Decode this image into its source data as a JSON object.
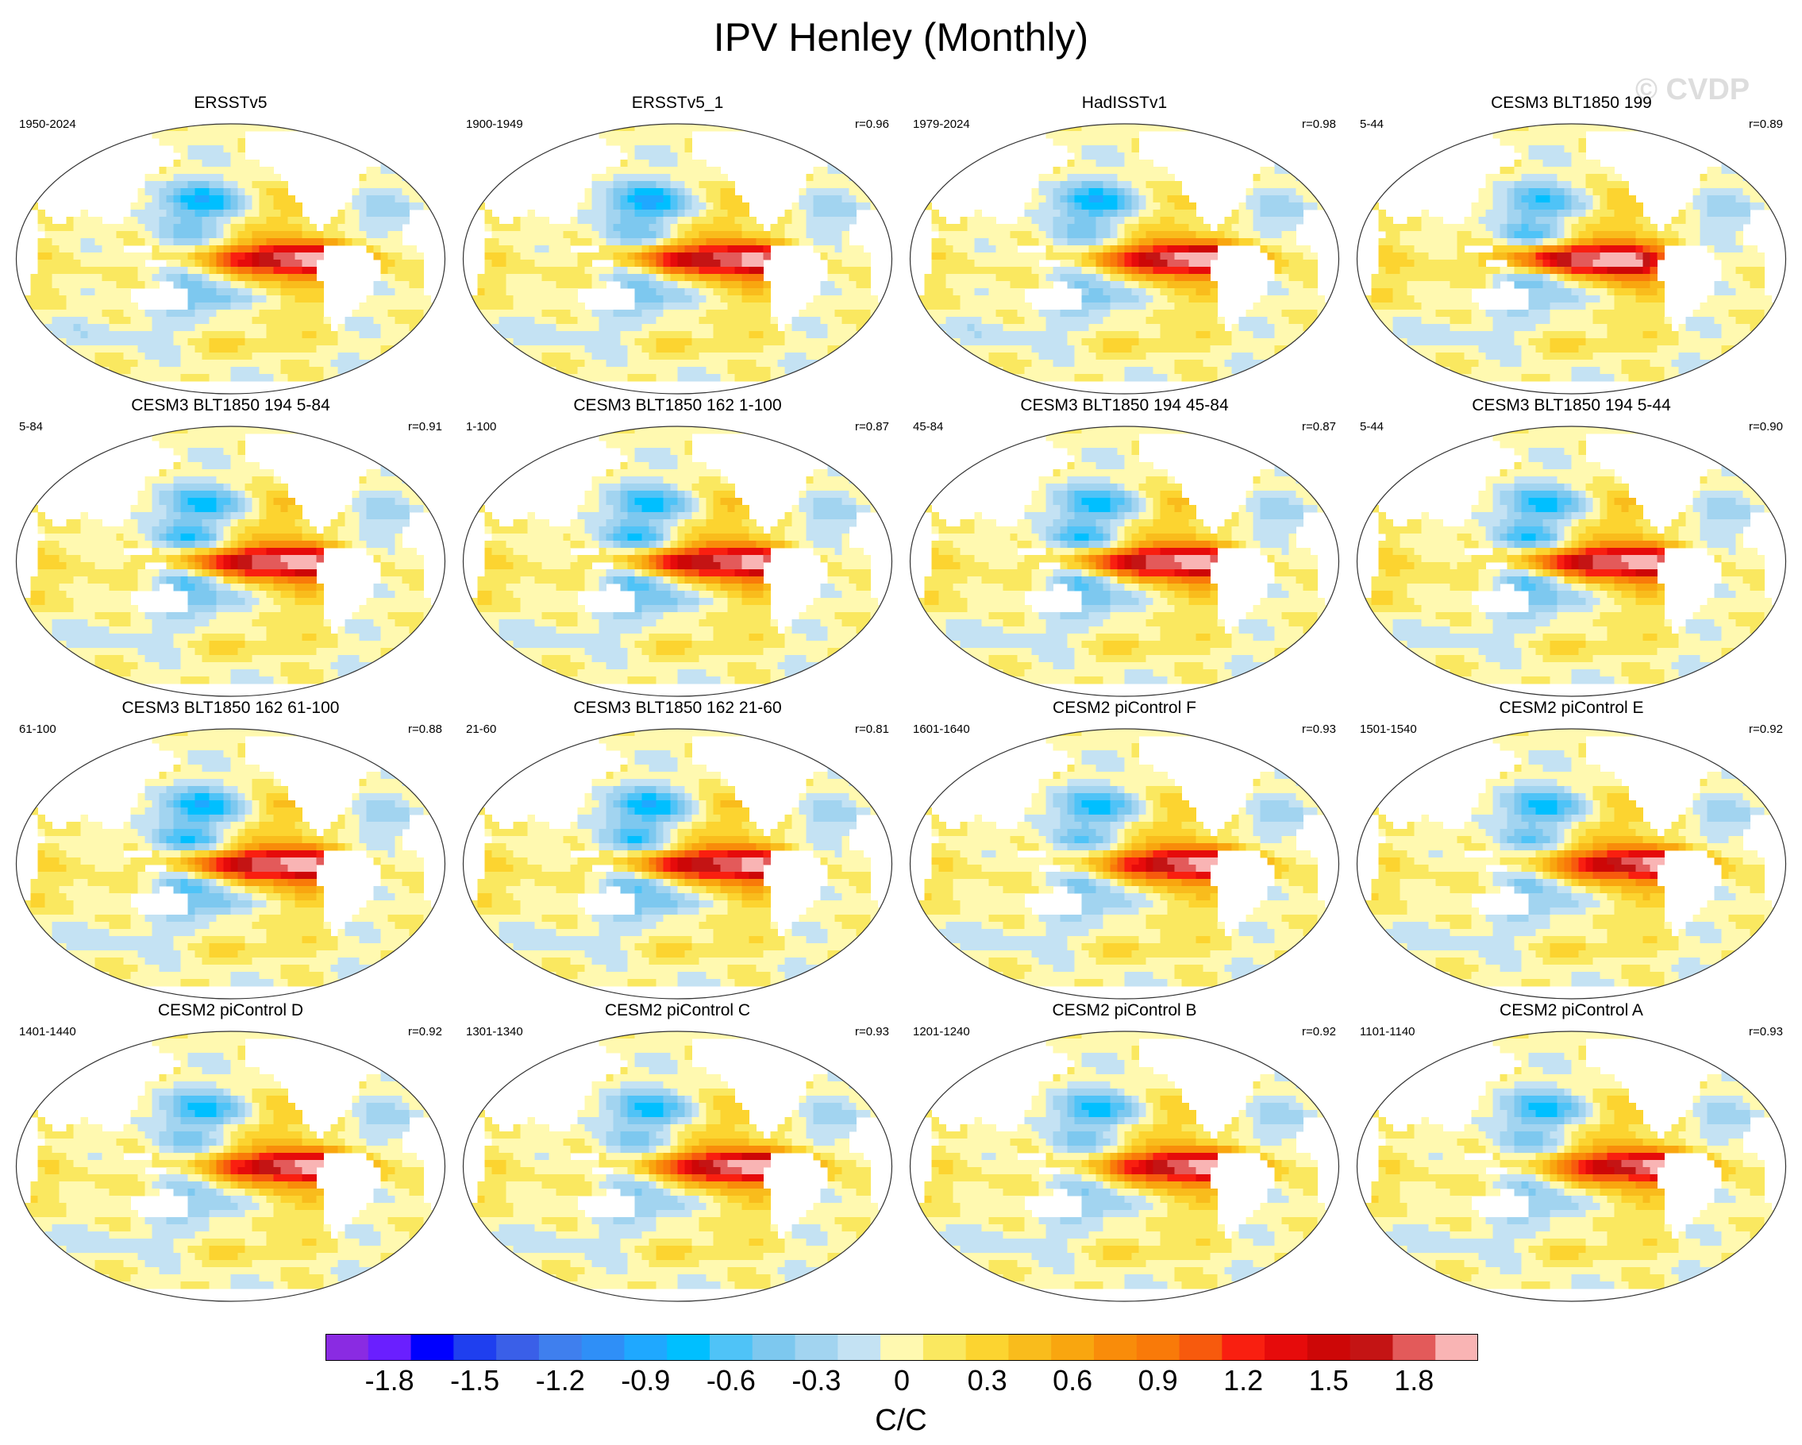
{
  "title": "IPV Henley (Monthly)",
  "watermark": "© CVDP",
  "panels": [
    {
      "name": "ERSSTv5",
      "period": "1950-2024",
      "r": "",
      "pattern": {
        "eq": 1.0,
        "w": 0.6,
        "n": 1.0,
        "ne": 0.4,
        "s": 0.9,
        "io": 0.3,
        "shift": 0.05
      }
    },
    {
      "name": "ERSSTv5_1",
      "period": "1900-1949",
      "r": "r=0.96",
      "pattern": {
        "eq": 0.95,
        "w": 0.7,
        "n": 1.1,
        "ne": 0.4,
        "s": 0.8,
        "io": 0.4,
        "shift": 0.0
      }
    },
    {
      "name": "HadISSTv1",
      "period": "1979-2024",
      "r": "r=0.98",
      "pattern": {
        "eq": 1.05,
        "w": 0.6,
        "n": 1.0,
        "ne": 0.3,
        "s": 0.8,
        "io": 0.3,
        "shift": 0.05
      }
    },
    {
      "name": "CESM3 BLT1850 199",
      "period": "5-44",
      "r": "r=0.89",
      "pattern": {
        "eq": 1.0,
        "w": 0.9,
        "n": 0.8,
        "ne": 0.5,
        "s": 0.7,
        "io": 0.6,
        "shift": -0.05
      }
    },
    {
      "name": "CESM3 BLT1850 194 5-84",
      "period": "5-84",
      "r": "r=0.91",
      "pattern": {
        "eq": 1.0,
        "w": 1.1,
        "n": 0.9,
        "ne": 0.6,
        "s": 0.8,
        "io": 0.5,
        "shift": 0.0
      }
    },
    {
      "name": "CESM3 BLT1850 162 1-100",
      "period": "1-100",
      "r": "r=0.87",
      "pattern": {
        "eq": 0.95,
        "w": 1.1,
        "n": 0.9,
        "ne": 0.6,
        "s": 0.9,
        "io": 0.5,
        "shift": 0.0
      }
    },
    {
      "name": "CESM3 BLT1850 194 45-84",
      "period": "45-84",
      "r": "r=0.87",
      "pattern": {
        "eq": 1.0,
        "w": 1.1,
        "n": 0.9,
        "ne": 0.6,
        "s": 0.8,
        "io": 0.5,
        "shift": 0.0
      }
    },
    {
      "name": "CESM3 BLT1850 194 5-44",
      "period": "5-44",
      "r": "r=0.90",
      "pattern": {
        "eq": 1.0,
        "w": 1.1,
        "n": 0.9,
        "ne": 0.6,
        "s": 0.8,
        "io": 0.6,
        "shift": 0.0
      }
    },
    {
      "name": "CESM3 BLT1850 162 61-100",
      "period": "61-100",
      "r": "r=0.88",
      "pattern": {
        "eq": 1.0,
        "w": 1.1,
        "n": 1.0,
        "ne": 0.6,
        "s": 0.9,
        "io": 0.5,
        "shift": 0.0
      }
    },
    {
      "name": "CESM3 BLT1850 162 21-60",
      "period": "21-60",
      "r": "r=0.81",
      "pattern": {
        "eq": 0.95,
        "w": 1.0,
        "n": 1.0,
        "ne": 0.6,
        "s": 0.9,
        "io": 0.5,
        "shift": 0.0
      }
    },
    {
      "name": "CESM2 piControl F",
      "period": "1601-1640",
      "r": "r=0.93",
      "pattern": {
        "eq": 1.0,
        "w": 0.7,
        "n": 0.9,
        "ne": 0.4,
        "s": 0.7,
        "io": 0.4,
        "shift": 0.05
      }
    },
    {
      "name": "CESM2 piControl E",
      "period": "1501-1540",
      "r": "r=0.92",
      "pattern": {
        "eq": 0.95,
        "w": 0.7,
        "n": 0.9,
        "ne": 0.4,
        "s": 0.7,
        "io": 0.4,
        "shift": 0.05
      }
    },
    {
      "name": "CESM2 piControl D",
      "period": "1401-1440",
      "r": "r=0.92",
      "pattern": {
        "eq": 1.0,
        "w": 0.6,
        "n": 0.9,
        "ne": 0.4,
        "s": 0.7,
        "io": 0.4,
        "shift": 0.05
      }
    },
    {
      "name": "CESM2 piControl C",
      "period": "1301-1340",
      "r": "r=0.93",
      "pattern": {
        "eq": 1.05,
        "w": 0.6,
        "n": 0.9,
        "ne": 0.4,
        "s": 0.7,
        "io": 0.4,
        "shift": 0.05
      }
    },
    {
      "name": "CESM2 piControl B",
      "period": "1201-1240",
      "r": "r=0.92",
      "pattern": {
        "eq": 1.0,
        "w": 0.6,
        "n": 0.9,
        "ne": 0.4,
        "s": 0.7,
        "io": 0.4,
        "shift": 0.05
      }
    },
    {
      "name": "CESM2 piControl A",
      "period": "1101-1140",
      "r": "r=0.93",
      "pattern": {
        "eq": 0.95,
        "w": 0.6,
        "n": 0.9,
        "ne": 0.4,
        "s": 0.7,
        "io": 0.4,
        "shift": 0.05
      }
    }
  ],
  "colorbar": {
    "colors": [
      "#8a2be2",
      "#6a1fff",
      "#0000ff",
      "#1f3fef",
      "#3a5fe8",
      "#3f7fee",
      "#2f8ff7",
      "#1fa8ff",
      "#00bfff",
      "#4fc3f7",
      "#7dc8ef",
      "#a2d4f0",
      "#c4e2f3",
      "#fff9b0",
      "#fae860",
      "#fcd430",
      "#f9bc1c",
      "#f9a60f",
      "#f98c0a",
      "#f97a09",
      "#f75a0d",
      "#f91f10",
      "#e60b0b",
      "#cd0707",
      "#c41414",
      "#e35a5a",
      "#f9b4b4"
    ],
    "levels": [
      -1.8,
      -1.5,
      -1.2,
      -0.9,
      -0.6,
      -0.3,
      0,
      0.3,
      0.6,
      0.9,
      1.2,
      1.5,
      1.8
    ],
    "tick_labels": [
      "-1.8",
      "-1.5",
      "-1.2",
      "-0.9",
      "-0.6",
      "-0.3",
      "0",
      "0.3",
      "0.6",
      "0.9",
      "1.2",
      "1.5",
      "1.8"
    ],
    "units": "C/C"
  }
}
